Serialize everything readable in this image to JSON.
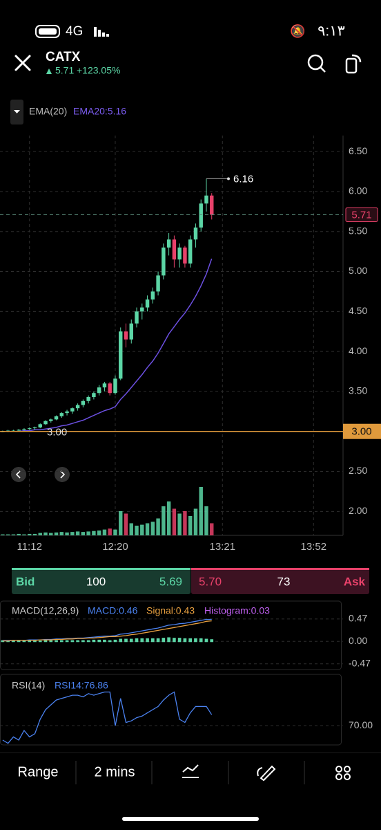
{
  "status_bar": {
    "network": "4G",
    "time": "٩:١٣"
  },
  "header": {
    "symbol": "CATX",
    "price": "5.71",
    "change": "+123.05%"
  },
  "indicator": {
    "name": "EMA(20)",
    "value": "EMA20:5.16"
  },
  "macd_labels": {
    "name": "MACD(12,26,9)",
    "macd": "MACD:0.46",
    "signal": "Signal:0.43",
    "histogram": "Histogram:0.03"
  },
  "rsi_labels": {
    "name": "RSI(14)",
    "rsi": "RSI14:76.86"
  },
  "quote": {
    "bid_label": "Bid",
    "bid_size": "100",
    "bid_price": "5.69",
    "ask_price": "5.70",
    "ask_size": "73",
    "ask_label": "Ask"
  },
  "toolbar": {
    "range": "Range",
    "interval": "2 mins"
  },
  "chart_data": [
    {
      "type": "candlestick",
      "up_color": "#5cd6a6",
      "down_color": "#e8416a",
      "candles": [
        [
          3.0,
          3.01,
          2.99,
          3.0
        ],
        [
          3.0,
          3.02,
          2.99,
          3.01
        ],
        [
          3.01,
          3.02,
          3.0,
          3.01
        ],
        [
          3.01,
          3.03,
          3.0,
          3.02
        ],
        [
          3.02,
          3.04,
          3.01,
          3.03
        ],
        [
          3.03,
          3.05,
          3.02,
          3.04
        ],
        [
          3.04,
          3.06,
          3.02,
          3.05
        ],
        [
          3.05,
          3.1,
          3.04,
          3.09
        ],
        [
          3.09,
          3.14,
          3.08,
          3.13
        ],
        [
          3.13,
          3.16,
          3.11,
          3.15
        ],
        [
          3.15,
          3.2,
          3.14,
          3.19
        ],
        [
          3.19,
          3.24,
          3.17,
          3.23
        ],
        [
          3.23,
          3.27,
          3.2,
          3.25
        ],
        [
          3.25,
          3.3,
          3.22,
          3.29
        ],
        [
          3.29,
          3.35,
          3.26,
          3.33
        ],
        [
          3.33,
          3.4,
          3.3,
          3.38
        ],
        [
          3.38,
          3.45,
          3.35,
          3.43
        ],
        [
          3.43,
          3.5,
          3.4,
          3.48
        ],
        [
          3.48,
          3.58,
          3.45,
          3.55
        ],
        [
          3.55,
          3.62,
          3.5,
          3.6
        ],
        [
          3.6,
          3.62,
          3.45,
          3.48
        ],
        [
          3.48,
          3.7,
          3.46,
          3.66
        ],
        [
          3.66,
          4.3,
          3.64,
          4.25
        ],
        [
          4.25,
          4.35,
          4.05,
          4.15
        ],
        [
          4.15,
          4.4,
          4.1,
          4.35
        ],
        [
          4.35,
          4.55,
          4.3,
          4.5
        ],
        [
          4.5,
          4.6,
          4.4,
          4.55
        ],
        [
          4.55,
          4.7,
          4.5,
          4.65
        ],
        [
          4.65,
          4.8,
          4.6,
          4.75
        ],
        [
          4.75,
          5.0,
          4.7,
          4.95
        ],
        [
          4.95,
          5.35,
          4.9,
          5.3
        ],
        [
          5.3,
          5.48,
          5.2,
          5.4
        ],
        [
          5.4,
          5.45,
          5.05,
          5.15
        ],
        [
          5.15,
          5.35,
          5.05,
          5.3
        ],
        [
          5.3,
          5.32,
          5.05,
          5.1
        ],
        [
          5.1,
          5.45,
          5.05,
          5.4
        ],
        [
          5.4,
          5.6,
          5.3,
          5.55
        ],
        [
          5.55,
          5.9,
          5.5,
          5.85
        ],
        [
          5.85,
          6.16,
          5.75,
          5.95
        ],
        [
          5.95,
          5.98,
          5.65,
          5.71
        ]
      ],
      "ema": {
        "color": "#6b4fe0",
        "values": [
          3.0,
          3.0,
          3.0,
          3.0,
          3.01,
          3.01,
          3.02,
          3.02,
          3.03,
          3.04,
          3.05,
          3.07,
          3.08,
          3.1,
          3.12,
          3.14,
          3.17,
          3.2,
          3.23,
          3.26,
          3.28,
          3.31,
          3.4,
          3.47,
          3.55,
          3.63,
          3.71,
          3.8,
          3.88,
          3.98,
          4.1,
          4.22,
          4.31,
          4.4,
          4.48,
          4.58,
          4.69,
          4.82,
          4.97,
          5.16
        ]
      },
      "volume": [
        2,
        2,
        2,
        3,
        2,
        3,
        3,
        5,
        6,
        5,
        6,
        7,
        6,
        7,
        8,
        7,
        8,
        9,
        10,
        12,
        14,
        12,
        50,
        45,
        25,
        20,
        22,
        25,
        28,
        35,
        60,
        70,
        55,
        45,
        50,
        40,
        55,
        100,
        60,
        25
      ],
      "vlim": [
        0,
        100
      ],
      "ylim": [
        1.7,
        6.7
      ],
      "yticks": [
        {
          "value": 2,
          "label": "2.00"
        },
        {
          "value": 2.5,
          "label": "2.50"
        },
        {
          "value": 3.5,
          "label": "3.50"
        },
        {
          "value": 4,
          "label": "4.00"
        },
        {
          "value": 4.5,
          "label": "4.50"
        },
        {
          "value": 5,
          "label": "5.00"
        },
        {
          "value": 5.5,
          "label": "5.50"
        },
        {
          "value": 6,
          "label": "6.00"
        },
        {
          "value": 6.5,
          "label": "6.50"
        }
      ],
      "xlim": [
        -0.5,
        63.5
      ],
      "xticks": [
        {
          "value": 5,
          "label": "11:12"
        },
        {
          "value": 21,
          "label": "12:20"
        },
        {
          "value": 41,
          "label": "13:21"
        },
        {
          "value": 58,
          "label": "13:52"
        }
      ],
      "grid": true,
      "high": 6.16,
      "last_price": 5.71,
      "level_line": {
        "value": 3,
        "label": "3.00"
      },
      "level_color": "#e09a3c"
    },
    {
      "type": "line",
      "ylim": [
        -0.59,
        0.83
      ],
      "yticks": [
        0.47,
        {
          "value": 0,
          "label": "0.00"
        },
        -0.47
      ],
      "series": [
        {
          "color": "#4b82f0",
          "values": [
            0.02,
            0.02,
            0.02,
            0.02,
            0.02,
            0.03,
            0.03,
            0.03,
            0.04,
            0.04,
            0.05,
            0.05,
            0.06,
            0.06,
            0.07,
            0.07,
            0.08,
            0.09,
            0.1,
            0.11,
            0.11,
            0.12,
            0.15,
            0.16,
            0.18,
            0.2,
            0.22,
            0.24,
            0.26,
            0.28,
            0.31,
            0.34,
            0.35,
            0.37,
            0.38,
            0.4,
            0.42,
            0.44,
            0.46,
            0.46
          ]
        },
        {
          "color": "#e8a040",
          "values": [
            0.01,
            0.01,
            0.02,
            0.02,
            0.02,
            0.02,
            0.02,
            0.03,
            0.03,
            0.03,
            0.04,
            0.04,
            0.05,
            0.05,
            0.06,
            0.06,
            0.07,
            0.07,
            0.08,
            0.09,
            0.1,
            0.1,
            0.11,
            0.12,
            0.14,
            0.15,
            0.17,
            0.19,
            0.21,
            0.23,
            0.25,
            0.27,
            0.29,
            0.31,
            0.33,
            0.35,
            0.37,
            0.39,
            0.42,
            0.43
          ]
        }
      ],
      "histogram": {
        "color": "#5cd6a6",
        "values": [
          0.01,
          0.01,
          0,
          0,
          0,
          0.01,
          0.01,
          0,
          0.01,
          0.01,
          0.01,
          0.01,
          0.01,
          0.01,
          0.01,
          0.01,
          0.01,
          0.02,
          0.02,
          0.02,
          0.01,
          0.02,
          0.04,
          0.04,
          0.04,
          0.05,
          0.05,
          0.05,
          0.05,
          0.05,
          0.06,
          0.07,
          0.06,
          0.06,
          0.05,
          0.05,
          0.05,
          0.05,
          0.04,
          0.03
        ]
      }
    },
    {
      "type": "line",
      "ylim": [
        58,
        102
      ],
      "yticks": [
        {
          "value": 70,
          "label": "70.00"
        }
      ],
      "series": [
        {
          "color": "#4b82f0",
          "values": [
            61,
            59,
            63,
            61,
            67,
            63,
            65,
            74,
            80,
            83,
            86,
            87,
            88,
            89,
            89,
            88,
            90,
            89,
            90,
            91,
            91,
            70,
            87,
            72,
            73,
            75,
            76,
            78,
            80,
            82,
            86,
            89,
            91,
            74,
            72,
            78,
            82,
            82,
            82,
            76.86
          ]
        }
      ]
    }
  ]
}
